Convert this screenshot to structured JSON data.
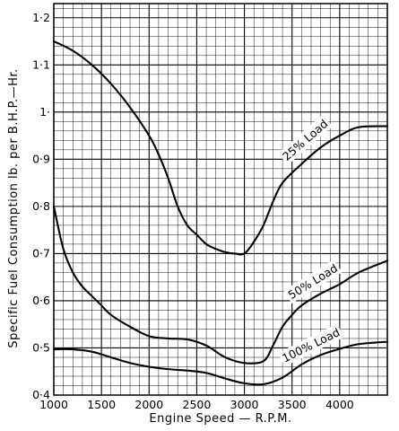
{
  "chart_data": {
    "type": "line",
    "xlabel": "Engine Speed — R.P.M.",
    "ylabel": "Specific  Fuel  Consumption   lb. per  B.H.P.—Hr.",
    "xlim": [
      1000,
      4500
    ],
    "ylim": [
      0.4,
      1.23
    ],
    "x_ticks": [
      {
        "value": 1000,
        "label": "1000"
      },
      {
        "value": 1500,
        "label": "1500"
      },
      {
        "value": 2000,
        "label": "2000"
      },
      {
        "value": 2500,
        "label": "2500"
      },
      {
        "value": 3000,
        "label": "3000"
      },
      {
        "value": 3500,
        "label": "3500"
      },
      {
        "value": 4000,
        "label": "4000"
      }
    ],
    "y_ticks": [
      {
        "value": 0.4,
        "label": "0·4"
      },
      {
        "value": 0.5,
        "label": "0·5"
      },
      {
        "value": 0.6,
        "label": "0·6"
      },
      {
        "value": 0.7,
        "label": "0·7"
      },
      {
        "value": 0.8,
        "label": "0·8"
      },
      {
        "value": 0.9,
        "label": "0·9"
      },
      {
        "value": 1.0,
        "label": "1·"
      },
      {
        "value": 1.1,
        "label": "1·1"
      },
      {
        "value": 1.2,
        "label": "1·2"
      }
    ],
    "grid": true,
    "series": [
      {
        "name": "25% Load",
        "label_at": {
          "x": 3640,
          "y": 0.94
        },
        "points": [
          [
            1000,
            1.15
          ],
          [
            1200,
            1.13
          ],
          [
            1400,
            1.1
          ],
          [
            1600,
            1.06
          ],
          [
            1800,
            1.01
          ],
          [
            2000,
            0.95
          ],
          [
            2100,
            0.91
          ],
          [
            2200,
            0.86
          ],
          [
            2300,
            0.8
          ],
          [
            2400,
            0.76
          ],
          [
            2500,
            0.74
          ],
          [
            2600,
            0.72
          ],
          [
            2700,
            0.71
          ],
          [
            2800,
            0.703
          ],
          [
            2900,
            0.7
          ],
          [
            3000,
            0.7
          ],
          [
            3100,
            0.725
          ],
          [
            3200,
            0.76
          ],
          [
            3300,
            0.81
          ],
          [
            3400,
            0.85
          ],
          [
            3600,
            0.89
          ],
          [
            3800,
            0.925
          ],
          [
            4000,
            0.95
          ],
          [
            4200,
            0.968
          ],
          [
            4500,
            0.97
          ]
        ]
      },
      {
        "name": "50% Load",
        "label_at": {
          "x": 3720,
          "y": 0.64
        },
        "points": [
          [
            1000,
            0.8
          ],
          [
            1100,
            0.71
          ],
          [
            1200,
            0.66
          ],
          [
            1300,
            0.63
          ],
          [
            1400,
            0.61
          ],
          [
            1500,
            0.59
          ],
          [
            1600,
            0.57
          ],
          [
            1800,
            0.545
          ],
          [
            2000,
            0.525
          ],
          [
            2200,
            0.52
          ],
          [
            2400,
            0.518
          ],
          [
            2600,
            0.505
          ],
          [
            2800,
            0.48
          ],
          [
            3000,
            0.468
          ],
          [
            3200,
            0.472
          ],
          [
            3300,
            0.505
          ],
          [
            3400,
            0.545
          ],
          [
            3500,
            0.57
          ],
          [
            3600,
            0.59
          ],
          [
            3800,
            0.615
          ],
          [
            4000,
            0.635
          ],
          [
            4200,
            0.66
          ],
          [
            4500,
            0.685
          ]
        ]
      },
      {
        "name": "100% Load",
        "label_at": {
          "x": 3700,
          "y": 0.505
        },
        "points": [
          [
            1000,
            0.497
          ],
          [
            1200,
            0.497
          ],
          [
            1400,
            0.492
          ],
          [
            1600,
            0.48
          ],
          [
            1800,
            0.468
          ],
          [
            2000,
            0.46
          ],
          [
            2200,
            0.455
          ],
          [
            2400,
            0.452
          ],
          [
            2600,
            0.447
          ],
          [
            2800,
            0.435
          ],
          [
            3000,
            0.425
          ],
          [
            3200,
            0.423
          ],
          [
            3400,
            0.437
          ],
          [
            3600,
            0.465
          ],
          [
            3800,
            0.485
          ],
          [
            4000,
            0.498
          ],
          [
            4200,
            0.508
          ],
          [
            4500,
            0.513
          ]
        ]
      }
    ]
  }
}
